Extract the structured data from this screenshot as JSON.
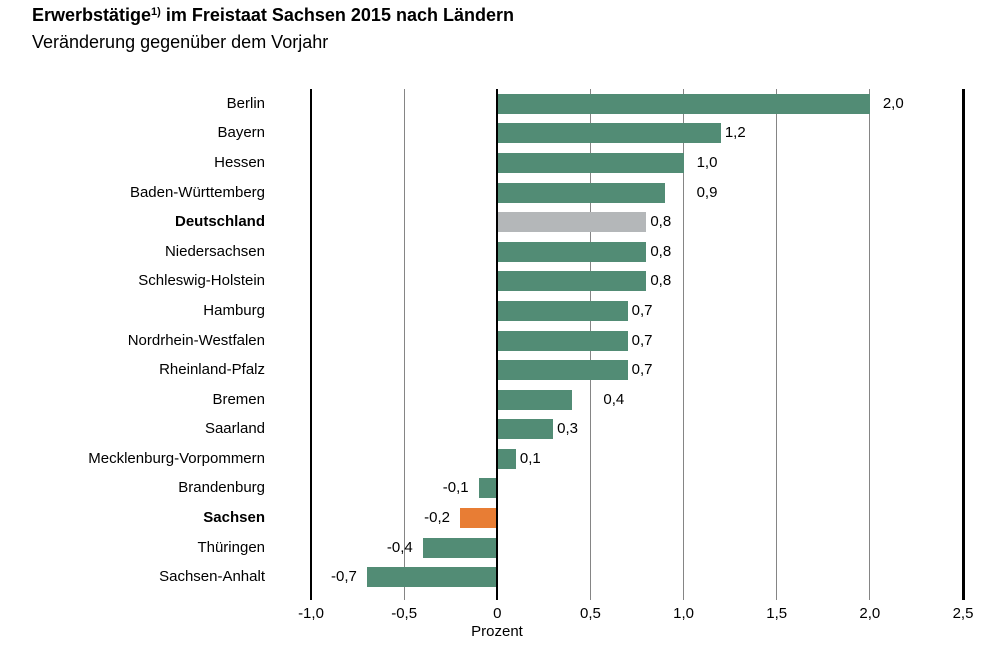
{
  "title": {
    "text": "Erwerbstätige",
    "superscript": "1)",
    "rest": " im Freistaat Sachsen 2015 nach Ländern"
  },
  "subtitle": "Veränderung gegenüber dem Vorjahr",
  "colors": {
    "bar_default": "#528c75",
    "bar_deutschland": "#b4b7b9",
    "bar_sachsen": "#e87d34",
    "gridline": "#858585",
    "axis_line": "#000000",
    "text": "#000000",
    "background": "#ffffff"
  },
  "chart_data": {
    "type": "bar",
    "orientation": "horizontal",
    "title": "Erwerbstätige 1) im Freistaat Sachsen 2015 nach Ländern",
    "subtitle": "Veränderung gegenüber dem Vorjahr",
    "xlabel": "Prozent",
    "xlim": [
      -1.0,
      2.5
    ],
    "grid": true,
    "legend": false,
    "xticks": [
      {
        "value": -1.0,
        "label": "-1,0",
        "style": "axis"
      },
      {
        "value": -0.5,
        "label": "-0,5",
        "style": "grid"
      },
      {
        "value": 0.0,
        "label": "0",
        "style": "zero"
      },
      {
        "value": 0.5,
        "label": "0,5",
        "style": "grid"
      },
      {
        "value": 1.0,
        "label": "1,0",
        "style": "grid"
      },
      {
        "value": 1.5,
        "label": "1,5",
        "style": "grid"
      },
      {
        "value": 2.0,
        "label": "2,0",
        "style": "grid"
      },
      {
        "value": 2.5,
        "label": "2,5",
        "style": "edge"
      }
    ],
    "bars": [
      {
        "category": "Berlin",
        "value": 2.0,
        "label": "2,0",
        "color_key": "default",
        "bold": false
      },
      {
        "category": "Bayern",
        "value": 1.2,
        "label": "1,2",
        "color_key": "default",
        "bold": false
      },
      {
        "category": "Hessen",
        "value": 1.0,
        "label": "1,0",
        "color_key": "default",
        "bold": false
      },
      {
        "category": "Baden-Württemberg",
        "value": 0.9,
        "label": "0,9",
        "color_key": "default",
        "bold": false
      },
      {
        "category": "Deutschland",
        "value": 0.8,
        "label": "0,8",
        "color_key": "deutschland",
        "bold": true
      },
      {
        "category": "Niedersachsen",
        "value": 0.8,
        "label": "0,8",
        "color_key": "default",
        "bold": false
      },
      {
        "category": "Schleswig-Holstein",
        "value": 0.8,
        "label": "0,8",
        "color_key": "default",
        "bold": false
      },
      {
        "category": "Hamburg",
        "value": 0.7,
        "label": "0,7",
        "color_key": "default",
        "bold": false
      },
      {
        "category": "Nordrhein-Westfalen",
        "value": 0.7,
        "label": "0,7",
        "color_key": "default",
        "bold": false
      },
      {
        "category": "Rheinland-Pfalz",
        "value": 0.7,
        "label": "0,7",
        "color_key": "default",
        "bold": false
      },
      {
        "category": "Bremen",
        "value": 0.4,
        "label": "0,4",
        "color_key": "default",
        "bold": false
      },
      {
        "category": "Saarland",
        "value": 0.3,
        "label": "0,3",
        "color_key": "default",
        "bold": false
      },
      {
        "category": "Mecklenburg-Vorpommern",
        "value": 0.1,
        "label": "0,1",
        "color_key": "default",
        "bold": false
      },
      {
        "category": "Brandenburg",
        "value": -0.1,
        "label": "-0,1",
        "color_key": "default",
        "bold": false
      },
      {
        "category": "Sachsen",
        "value": -0.2,
        "label": "-0,2",
        "color_key": "sachsen",
        "bold": true
      },
      {
        "category": "Thüringen",
        "value": -0.4,
        "label": "-0,4",
        "color_key": "default",
        "bold": false
      },
      {
        "category": "Sachsen-Anhalt",
        "value": -0.7,
        "label": "-0,7",
        "color_key": "default",
        "bold": false
      }
    ]
  }
}
